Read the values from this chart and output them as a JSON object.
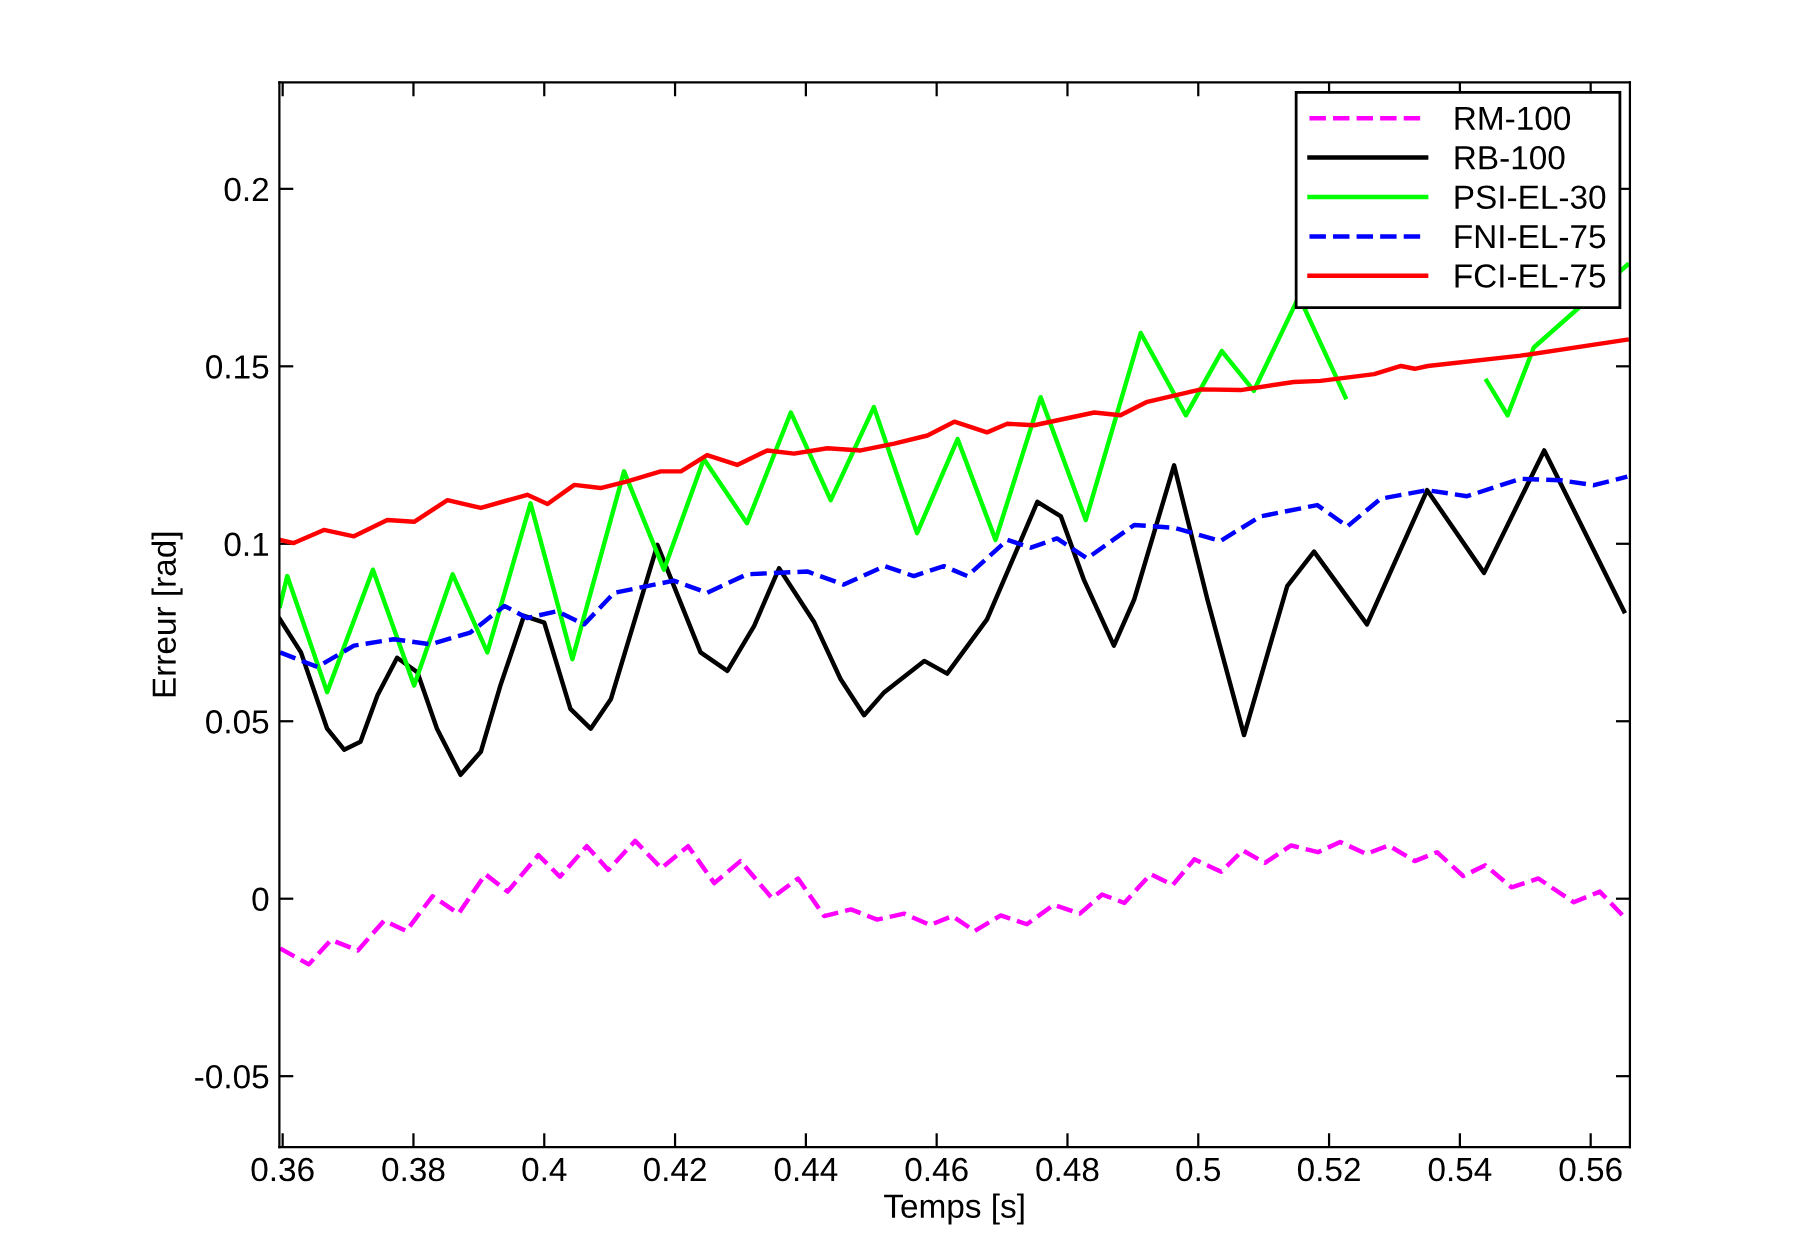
{
  "chart_data": {
    "type": "line",
    "xlabel": "Temps [s]",
    "ylabel": "Erreur [rad]",
    "xlim": [
      0.3595,
      0.566
    ],
    "ylim": [
      -0.07,
      0.23
    ],
    "xticks": [
      0.36,
      0.38,
      0.4,
      0.42,
      0.44,
      0.46,
      0.48,
      0.5,
      0.52,
      0.54,
      0.56
    ],
    "yticks": [
      -0.05,
      0,
      0.05,
      0.1,
      0.15,
      0.2
    ],
    "grid": false,
    "legend": "top right",
    "series": [
      {
        "name": "RM-100",
        "color": "#ff00ff",
        "line_style": "dashed",
        "x": [
          0.3596,
          0.364,
          0.3674,
          0.3715,
          0.3755,
          0.3789,
          0.3829,
          0.3869,
          0.391,
          0.3944,
          0.3991,
          0.4024,
          0.4065,
          0.4098,
          0.4139,
          0.4179,
          0.422,
          0.426,
          0.43,
          0.4348,
          0.4388,
          0.4428,
          0.4469,
          0.4509,
          0.455,
          0.459,
          0.4624,
          0.4658,
          0.4698,
          0.4738,
          0.4779,
          0.4819,
          0.4853,
          0.4887,
          0.4927,
          0.4961,
          0.4994,
          0.5035,
          0.5068,
          0.5102,
          0.5142,
          0.5183,
          0.5217,
          0.5257,
          0.5291,
          0.5331,
          0.5365,
          0.5405,
          0.5439,
          0.5479,
          0.552,
          0.5574,
          0.5614,
          0.5655
        ],
        "values": [
          -0.014,
          -0.0185,
          -0.0116,
          -0.0146,
          -0.0062,
          -0.0091,
          0.0007,
          -0.0042,
          0.0069,
          0.002,
          0.0123,
          0.0062,
          0.0148,
          0.0081,
          0.0163,
          0.0086,
          0.0148,
          0.0044,
          0.0106,
          0.0002,
          0.0057,
          -0.0049,
          -0.003,
          -0.0059,
          -0.0042,
          -0.0074,
          -0.0049,
          -0.0091,
          -0.0047,
          -0.0072,
          -0.0017,
          -0.0042,
          0.0012,
          -0.0012,
          0.0069,
          0.0039,
          0.0111,
          0.0076,
          0.0136,
          0.0101,
          0.015,
          0.0131,
          0.016,
          0.0126,
          0.015,
          0.0106,
          0.0131,
          0.0064,
          0.0094,
          0.0032,
          0.0057,
          -0.001,
          0.002,
          -0.0059
        ]
      },
      {
        "name": "RB-100",
        "color": "#000000",
        "line_style": "solid",
        "x": [
          0.3596,
          0.3628,
          0.3668,
          0.3694,
          0.3719,
          0.3745,
          0.3775,
          0.3806,
          0.3836,
          0.3872,
          0.3903,
          0.3933,
          0.3969,
          0.4,
          0.404,
          0.4071,
          0.4102,
          0.4173,
          0.4239,
          0.428,
          0.4321,
          0.4359,
          0.4413,
          0.4453,
          0.4489,
          0.452,
          0.4581,
          0.4616,
          0.4677,
          0.4754,
          0.479,
          0.4825,
          0.4871,
          0.4902,
          0.4963,
          0.5014,
          0.507,
          0.5136,
          0.5177,
          0.5258,
          0.535,
          0.5437,
          0.5529,
          0.5651
        ],
        "values": [
          0.0787,
          0.0694,
          0.0479,
          0.042,
          0.0442,
          0.0573,
          0.0679,
          0.0638,
          0.0479,
          0.0349,
          0.0414,
          0.0601,
          0.0797,
          0.0778,
          0.0535,
          0.0479,
          0.0563,
          0.0997,
          0.0694,
          0.0642,
          0.0769,
          0.0931,
          0.0778,
          0.0619,
          0.0517,
          0.0582,
          0.067,
          0.0634,
          0.0787,
          0.1118,
          0.1077,
          0.0899,
          0.0713,
          0.0843,
          0.1221,
          0.0843,
          0.0461,
          0.0881,
          0.0978,
          0.0773,
          0.1151,
          0.0918,
          0.1263,
          0.081
        ]
      },
      {
        "name": "PSI-EL-30",
        "color": "#00ff00",
        "line_style": "solid",
        "x": [
          0.3596,
          0.3607,
          0.3668,
          0.3738,
          0.3801,
          0.386,
          0.3913,
          0.3979,
          0.4043,
          0.4122,
          0.4183,
          0.4244,
          0.431,
          0.4377,
          0.4438,
          0.4504,
          0.457,
          0.4632,
          0.469,
          0.4759,
          0.4828,
          0.4912,
          0.4981,
          0.5036,
          0.5085,
          0.5154,
          0.5225,
          0.5331,
          0.5441,
          0.5473,
          0.5513,
          0.5656
        ],
        "values": [
          0.0825,
          0.0909,
          0.0582,
          0.0927,
          0.0601,
          0.0914,
          0.0694,
          0.1114,
          0.0675,
          0.1204,
          0.0927,
          0.1239,
          0.1058,
          0.137,
          0.1123,
          0.1385,
          0.103,
          0.1295,
          0.1011,
          0.1413,
          0.1067,
          0.1594,
          0.1362,
          0.1543,
          0.1431,
          0.1697,
          0.1413,
          null,
          0.1459,
          0.1362,
          0.1553,
          0.1786
        ]
      },
      {
        "name": "FNI-EL-75",
        "color": "#0000ff",
        "line_style": "dashed",
        "x": [
          0.3596,
          0.3653,
          0.3709,
          0.377,
          0.3826,
          0.3887,
          0.3939,
          0.3974,
          0.402,
          0.4061,
          0.4107,
          0.4198,
          0.4249,
          0.431,
          0.4402,
          0.4458,
          0.452,
          0.4565,
          0.4611,
          0.4647,
          0.4708,
          0.4744,
          0.4784,
          0.483,
          0.4902,
          0.4963,
          0.5034,
          0.5095,
          0.5182,
          0.5228,
          0.5279,
          0.535,
          0.5411,
          0.5493,
          0.5554,
          0.5605,
          0.5656
        ],
        "values": [
          0.0694,
          0.0653,
          0.0713,
          0.0731,
          0.0717,
          0.075,
          0.0825,
          0.0791,
          0.081,
          0.0773,
          0.0862,
          0.0896,
          0.0862,
          0.0914,
          0.0922,
          0.0885,
          0.0937,
          0.0909,
          0.0937,
          0.0909,
          0.1011,
          0.0989,
          0.1015,
          0.0959,
          0.1053,
          0.1045,
          0.1008,
          0.1077,
          0.1109,
          0.1049,
          0.1127,
          0.1151,
          0.1134,
          0.1183,
          0.1179,
          0.1165,
          0.1189
        ]
      },
      {
        "name": "FCI-EL-75",
        "color": "#ff0000",
        "line_style": "solid",
        "x": [
          0.3596,
          0.3617,
          0.3663,
          0.3709,
          0.376,
          0.3801,
          0.3852,
          0.3903,
          0.3974,
          0.4005,
          0.4046,
          0.4086,
          0.4127,
          0.4178,
          0.4209,
          0.4249,
          0.4295,
          0.4341,
          0.4382,
          0.4433,
          0.4484,
          0.4535,
          0.4586,
          0.4627,
          0.4677,
          0.4708,
          0.4749,
          0.4841,
          0.4881,
          0.4922,
          0.5004,
          0.5065,
          0.5146,
          0.5187,
          0.5269,
          0.531,
          0.5331,
          0.5351,
          0.5493,
          0.5655
        ],
        "values": [
          0.1011,
          0.1002,
          0.1039,
          0.1021,
          0.1067,
          0.1062,
          0.1123,
          0.1101,
          0.1138,
          0.1112,
          0.1166,
          0.1157,
          0.1176,
          0.1204,
          0.1204,
          0.125,
          0.1222,
          0.1263,
          0.1254,
          0.1269,
          0.1263,
          0.1282,
          0.1305,
          0.1344,
          0.1314,
          0.1338,
          0.1334,
          0.137,
          0.1362,
          0.14,
          0.1435,
          0.1433,
          0.1456,
          0.1459,
          0.1478,
          0.1501,
          0.1493,
          0.1501,
          0.153,
          0.1575
        ]
      }
    ]
  }
}
